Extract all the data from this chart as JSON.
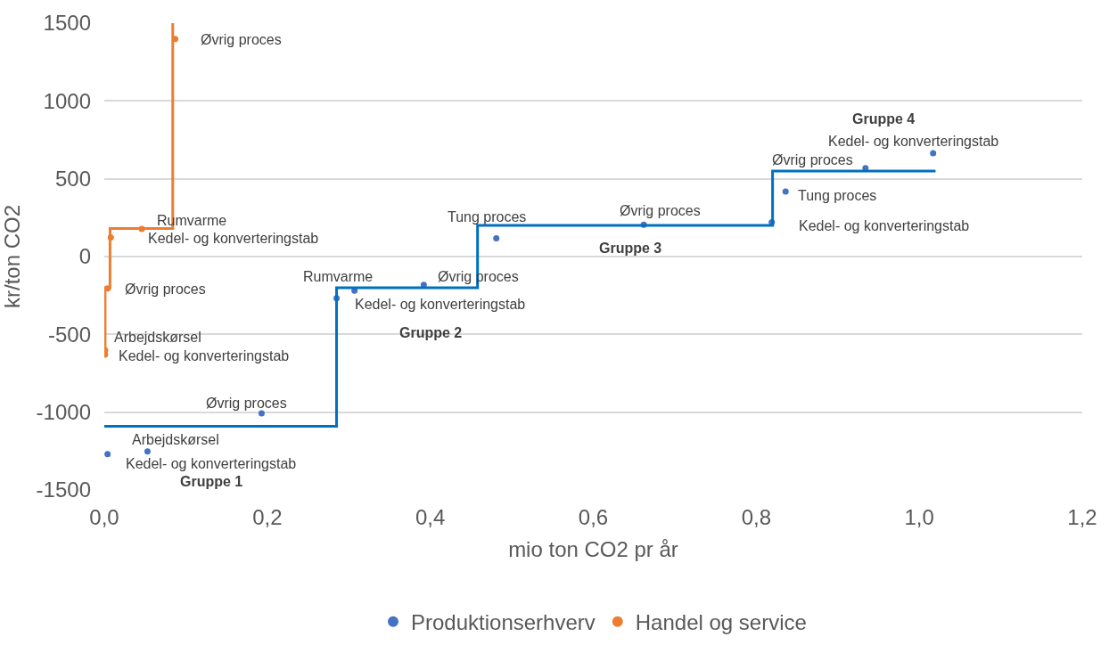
{
  "chart_data": {
    "type": "scatter",
    "xlabel": "mio ton CO2 pr år",
    "ylabel": "kr/ton CO2",
    "xlim": [
      0,
      1.2
    ],
    "ylim": [
      -1500,
      1500
    ],
    "xticks": [
      {
        "value": 0,
        "label": "0,0"
      },
      {
        "value": 0.2,
        "label": "0,2"
      },
      {
        "value": 0.4,
        "label": "0,4"
      },
      {
        "value": 0.6,
        "label": "0,6"
      },
      {
        "value": 0.8,
        "label": "0,8"
      },
      {
        "value": 1.0,
        "label": "1,0"
      },
      {
        "value": 1.2,
        "label": "1,2"
      }
    ],
    "yticks": [
      -1500,
      -1000,
      -500,
      0,
      500,
      1000,
      1500
    ],
    "grid": "y",
    "legend": "bottom",
    "marker": "circle",
    "series": [
      {
        "name": "Produktionserhverv",
        "color": "#4472c4",
        "x": [
          0.004,
          0.053,
          0.193,
          0.285,
          0.307,
          0.392,
          0.481,
          0.662,
          0.819,
          0.836,
          0.934,
          1.017
        ],
        "values": [
          -1270,
          -1253,
          -1007,
          -268,
          -219,
          -182,
          118,
          204,
          220,
          418,
          568,
          664
        ]
      },
      {
        "name": "Handel og service",
        "color": "#ed7d31",
        "x": [
          0.001,
          0.001,
          0.004,
          0.008,
          0.046,
          0.087
        ],
        "values": [
          -630,
          -603,
          -204,
          123,
          177,
          1398
        ]
      },
      {
        "type": "step",
        "marker": "none",
        "color": "#0070c0",
        "x": [
          0,
          0.285,
          0.458,
          0.82,
          1.02
        ],
        "values": [
          -1090,
          -200,
          200,
          550,
          550
        ]
      },
      {
        "type": "step",
        "marker": "none",
        "color": "#ed7d31",
        "x": [
          0,
          0.001,
          0.007,
          0.084
        ],
        "values": [
          -620,
          -200,
          180,
          1500
        ]
      }
    ],
    "annotations": [
      "Øvrig proces",
      "Rumvarme",
      "Kedel- og konverteringstab",
      "Øvrig proces",
      "Arbejdskørsel",
      "Kedel- og konverteringstab",
      "Øvrig proces",
      "Arbejdskørsel",
      "Kedel- og konverteringstab",
      "Gruppe 1",
      "Rumvarme",
      "Kedel- og konverteringstab",
      "Øvrig proces",
      "Gruppe 2",
      "Tung proces",
      "Øvrig proces",
      "Gruppe 3",
      "Kedel- og konverteringstab",
      "Tung proces",
      "Øvrig proces",
      "Kedel- og konverteringstab",
      "Gruppe 4"
    ]
  }
}
